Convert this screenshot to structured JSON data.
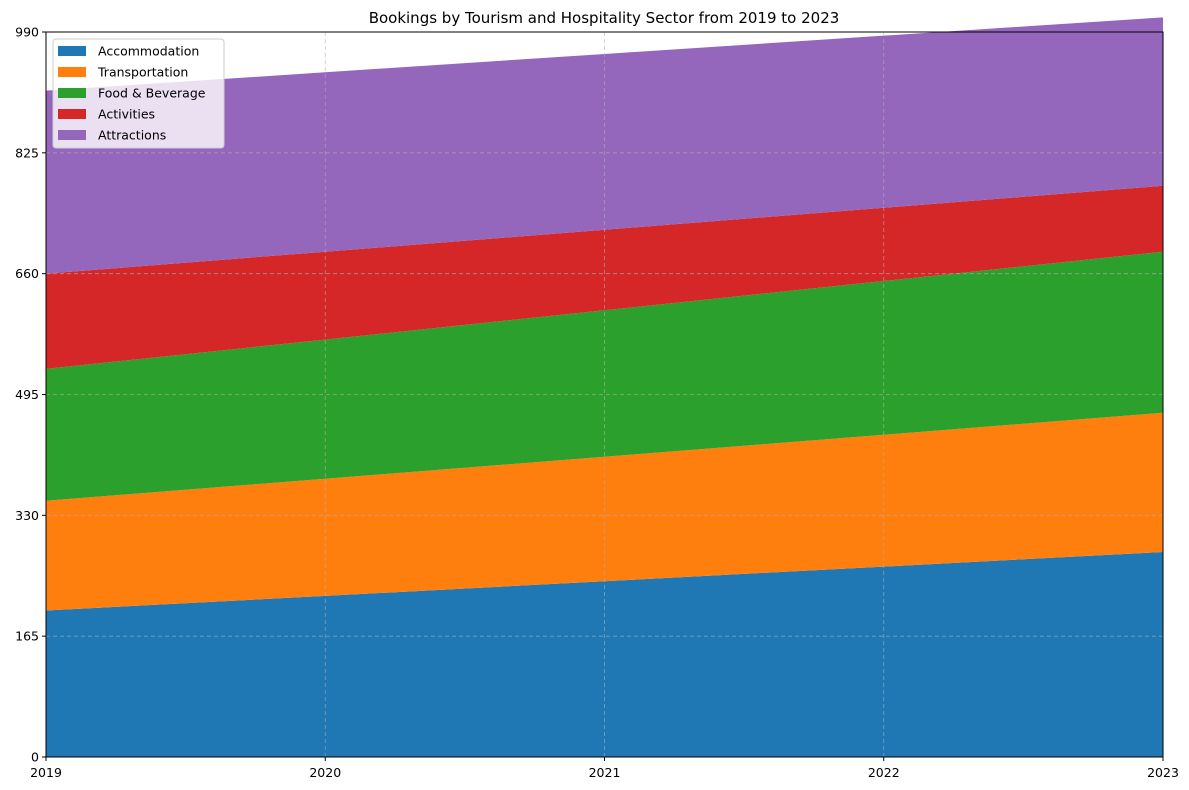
{
  "chart_data": {
    "type": "area",
    "stacked": true,
    "title": "Bookings by Tourism and Hospitality Sector from 2019 to 2023",
    "xlabel": "",
    "ylabel": "",
    "x": [
      "2019",
      "2020",
      "2021",
      "2022",
      "2023"
    ],
    "xlim": [
      2019,
      2023
    ],
    "ylim": [
      0,
      990
    ],
    "yticks": [
      0,
      165,
      330,
      495,
      660,
      825,
      990
    ],
    "grid": true,
    "legend_position": "top-left",
    "series": [
      {
        "name": "Accommodation",
        "color": "#1f77b4",
        "values": [
          200,
          220,
          240,
          260,
          280
        ]
      },
      {
        "name": "Transportation",
        "color": "#ff7f0e",
        "values": [
          150,
          160,
          170,
          180,
          190
        ]
      },
      {
        "name": "Food & Beverage",
        "color": "#2ca02c",
        "values": [
          180,
          190,
          200,
          210,
          220
        ]
      },
      {
        "name": "Activities",
        "color": "#d62728",
        "values": [
          130,
          120,
          110,
          100,
          90
        ]
      },
      {
        "name": "Attractions",
        "color": "#9467bd",
        "values": [
          250,
          245,
          240,
          235,
          230
        ]
      }
    ]
  }
}
